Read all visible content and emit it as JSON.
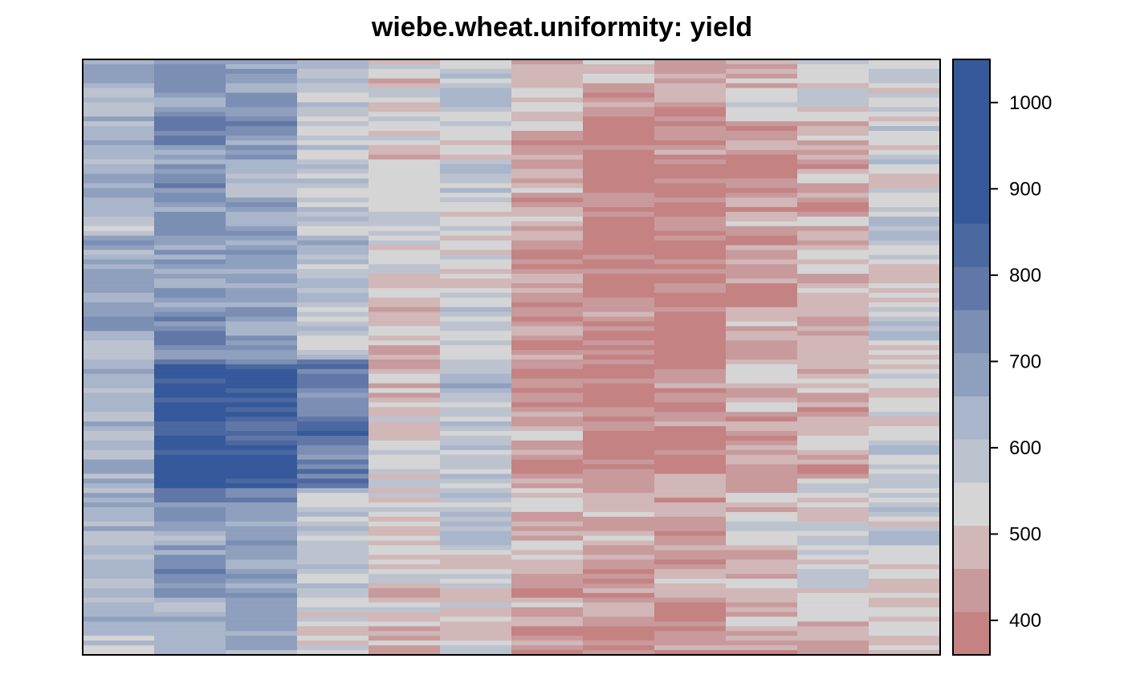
{
  "chart_data": {
    "type": "heatmap",
    "title": "wiebe.wheat.uniformity: yield",
    "xlabel": "",
    "ylabel": "",
    "n_cols": 12,
    "n_rows": 125,
    "value_range": [
      360,
      1050
    ],
    "colorbar": {
      "breaks": [
        360,
        410,
        460,
        510,
        560,
        610,
        660,
        710,
        760,
        810,
        860,
        910,
        960,
        1010,
        1050
      ],
      "colors": [
        "#c48283",
        "#c89a9b",
        "#d1b7b7",
        "#d5d5d6",
        "#bcc3cf",
        "#a9b5ca",
        "#8f9fbe",
        "#7b8eb4",
        "#6177a7",
        "#4b68a0",
        "#35599a",
        "#35599a",
        "#35599a",
        "#35599a"
      ],
      "ticks": [
        400,
        500,
        600,
        700,
        800,
        900,
        1000
      ],
      "tick_labels": [
        "400",
        "500",
        "600",
        "700",
        "800",
        "900",
        "1000"
      ]
    },
    "column_means": [
      640,
      700,
      690,
      590,
      520,
      570,
      490,
      450,
      460,
      500,
      520,
      560
    ],
    "column_pattern_seed": 20240611
  }
}
